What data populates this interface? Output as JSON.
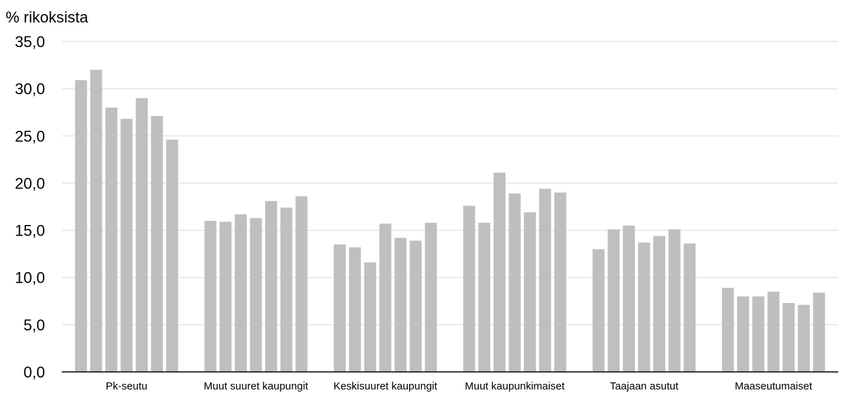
{
  "chart_data": {
    "type": "bar",
    "ylabel": "% rikoksista",
    "xlabel": "",
    "ylim": [
      0,
      35
    ],
    "yticks": [
      "0,0",
      "5,0",
      "10,0",
      "15,0",
      "20,0",
      "25,0",
      "30,0",
      "35,0"
    ],
    "grid": true,
    "legend": "none",
    "categories": [
      "Pk-seutu",
      "Muut suuret kaupungit",
      "Keskisuuret kaupungit",
      "Muut kaupunkimaiset",
      "Taajaan asutut",
      "Maaseutumaiset"
    ],
    "groups": [
      [
        30.9,
        32.0,
        28.0,
        26.8,
        29.0,
        27.1,
        24.6
      ],
      [
        16.0,
        15.9,
        16.7,
        16.3,
        18.1,
        17.4,
        18.6
      ],
      [
        13.5,
        13.2,
        11.6,
        15.7,
        14.2,
        13.9,
        15.8
      ],
      [
        17.6,
        15.8,
        21.1,
        18.9,
        16.9,
        19.4,
        19.0
      ],
      [
        13.0,
        15.1,
        15.5,
        13.7,
        14.4,
        15.1,
        13.6
      ],
      [
        8.9,
        8.0,
        8.0,
        8.5,
        7.3,
        7.1,
        8.4
      ]
    ]
  },
  "colors": {
    "bar": "#bfbfbf",
    "grid": "#d9d9d9",
    "axis": "#000000"
  }
}
